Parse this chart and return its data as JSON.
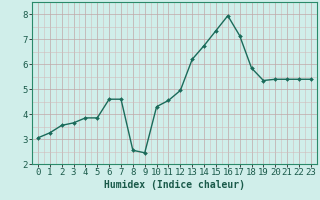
{
  "x": [
    0,
    1,
    2,
    3,
    4,
    5,
    6,
    7,
    8,
    9,
    10,
    11,
    12,
    13,
    14,
    15,
    16,
    17,
    18,
    19,
    20,
    21,
    22,
    23
  ],
  "y": [
    3.05,
    3.25,
    3.55,
    3.65,
    3.85,
    3.85,
    4.6,
    4.6,
    2.55,
    2.45,
    4.3,
    4.55,
    4.95,
    6.2,
    6.75,
    7.35,
    7.95,
    7.15,
    5.85,
    5.35,
    5.4,
    5.4,
    5.4,
    5.4
  ],
  "line_color": "#1a6b5a",
  "marker": "D",
  "markersize": 2.0,
  "linewidth": 1.0,
  "bg_color": "#d0eeea",
  "grid_color_major": "#c0a8a8",
  "grid_color_minor": "#d0bcbc",
  "xlabel": "Humidex (Indice chaleur)",
  "xlabel_fontsize": 7,
  "ylim": [
    2.0,
    8.5
  ],
  "xlim": [
    -0.5,
    23.5
  ],
  "yticks": [
    2,
    3,
    4,
    5,
    6,
    7,
    8
  ],
  "xticks": [
    0,
    1,
    2,
    3,
    4,
    5,
    6,
    7,
    8,
    9,
    10,
    11,
    12,
    13,
    14,
    15,
    16,
    17,
    18,
    19,
    20,
    21,
    22,
    23
  ],
  "tick_fontsize": 6.5,
  "spine_color": "#2a8a6a"
}
